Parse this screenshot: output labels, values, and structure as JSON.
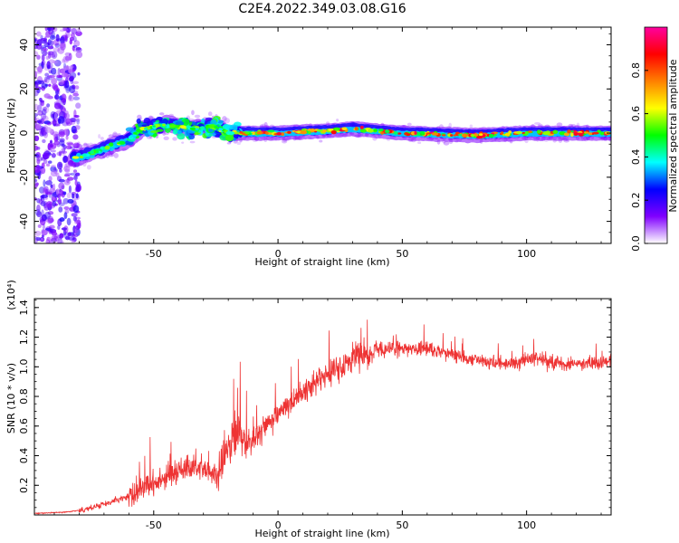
{
  "title": "C2E4.2022.349.03.08.G16",
  "chart_data": [
    {
      "type": "heatmap",
      "xlabel": "Height of straight line (km)",
      "ylabel": "Frequency (Hz)",
      "xlim": [
        -98,
        134
      ],
      "ylim": [
        -50,
        48
      ],
      "xticks": [
        -50,
        0,
        50,
        100
      ],
      "yticks": [
        -40,
        -20,
        0,
        20,
        40
      ],
      "colorbar": {
        "label": "Normalized spectral amplitude",
        "range": [
          0,
          1
        ],
        "ticks": [
          0.0,
          0.2,
          0.4,
          0.6,
          0.8
        ],
        "colors": [
          "#ffffff",
          "#8000ff",
          "#0000ff",
          "#00ffff",
          "#00ff00",
          "#ffff00",
          "#ff8000",
          "#ff0000",
          "#ff00a0"
        ]
      },
      "ridge": [
        {
          "x": -80,
          "y": -11
        },
        {
          "x": -70,
          "y": -7
        },
        {
          "x": -60,
          "y": -3
        },
        {
          "x": -55,
          "y": 2
        },
        {
          "x": -45,
          "y": 4
        },
        {
          "x": -35,
          "y": 2
        },
        {
          "x": -25,
          "y": 3
        },
        {
          "x": -20,
          "y": 0
        },
        {
          "x": 0,
          "y": 0
        },
        {
          "x": 20,
          "y": 1
        },
        {
          "x": 30,
          "y": 2
        },
        {
          "x": 50,
          "y": 0
        },
        {
          "x": 80,
          "y": -1
        },
        {
          "x": 100,
          "y": 0
        },
        {
          "x": 134,
          "y": 0
        }
      ]
    },
    {
      "type": "line",
      "xlabel": "Height of straight line (km)",
      "ylabel": "SNR (10 * v/v)",
      "ylabel_scale": "(x10⁴)",
      "xlim": [
        -98,
        134
      ],
      "ylim": [
        0,
        1.46
      ],
      "xticks": [
        -50,
        0,
        50,
        100
      ],
      "yticks": [
        0.2,
        0.4,
        0.6,
        0.8,
        1.0,
        1.2,
        1.4
      ],
      "color": "#ee3333",
      "series": [
        {
          "x": [
            -98,
            -85,
            -80,
            -75,
            -70,
            -65,
            -60,
            -55,
            -50,
            -45,
            -40,
            -35,
            -30,
            -25,
            -22,
            -20,
            -18,
            -15,
            -12,
            -10,
            -8,
            -5,
            0,
            5,
            10,
            15,
            20,
            25,
            30,
            35,
            40,
            45,
            50,
            55,
            60,
            65,
            70,
            75,
            80,
            85,
            90,
            95,
            100,
            105,
            110,
            115,
            120,
            125,
            130,
            134
          ],
          "y": [
            0.01,
            0.02,
            0.03,
            0.05,
            0.07,
            0.1,
            0.13,
            0.17,
            0.21,
            0.25,
            0.3,
            0.32,
            0.3,
            0.28,
            0.32,
            0.45,
            0.5,
            0.55,
            0.48,
            0.5,
            0.55,
            0.6,
            0.68,
            0.75,
            0.82,
            0.9,
            0.95,
            1.0,
            1.05,
            1.08,
            1.1,
            1.12,
            1.12,
            1.12,
            1.13,
            1.1,
            1.08,
            1.05,
            1.05,
            1.03,
            1.02,
            1.03,
            1.05,
            1.05,
            1.03,
            1.02,
            1.02,
            1.03,
            1.03,
            1.03
          ]
        }
      ]
    }
  ]
}
